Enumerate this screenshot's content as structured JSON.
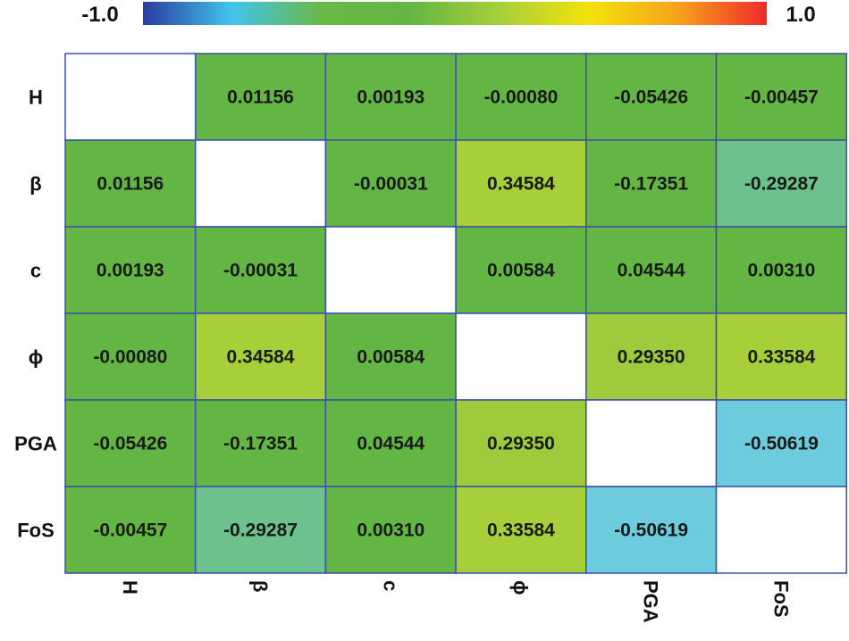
{
  "chart_data": {
    "type": "heatmap",
    "title": "",
    "colorbar": {
      "min_label": "-1.0",
      "max_label": "1.0",
      "range": [
        -1.0,
        1.0
      ],
      "colors": [
        "#2b3d9e",
        "#42c4ec",
        "#6ab845",
        "#64b644",
        "#a7cf3a",
        "#f4e20c",
        "#f7a21d",
        "#ee2b2b"
      ]
    },
    "row_labels": [
      "H",
      "β",
      "c",
      "ϕ",
      "PGA",
      "FoS"
    ],
    "col_labels": [
      "H",
      "β",
      "c",
      "ϕ",
      "PGA",
      "FoS"
    ],
    "values": [
      [
        null,
        0.01156,
        0.00193,
        -0.0008,
        -0.05426,
        -0.00457
      ],
      [
        0.01156,
        null,
        -0.00031,
        0.34584,
        -0.17351,
        -0.29287
      ],
      [
        0.00193,
        -0.00031,
        null,
        0.00584,
        0.04544,
        0.0031
      ],
      [
        -0.0008,
        0.34584,
        0.00584,
        null,
        0.2935,
        0.33584
      ],
      [
        -0.05426,
        -0.17351,
        0.04544,
        0.2935,
        null,
        -0.50619
      ],
      [
        -0.00457,
        -0.29287,
        0.0031,
        0.33584,
        -0.50619,
        null
      ]
    ],
    "value_labels": [
      [
        "",
        "0.01156",
        "0.00193",
        "-0.00080",
        "-0.05426",
        "-0.00457"
      ],
      [
        "0.01156",
        "",
        "-0.00031",
        "0.34584",
        "-0.17351",
        "-0.29287"
      ],
      [
        "0.00193",
        "-0.00031",
        "",
        "0.00584",
        "0.04544",
        "0.00310"
      ],
      [
        "-0.00080",
        "0.34584",
        "0.00584",
        "",
        "0.29350",
        "0.33584"
      ],
      [
        "-0.05426",
        "-0.17351",
        "0.04544",
        "0.29350",
        "",
        "-0.50619"
      ],
      [
        "-0.00457",
        "-0.29287",
        "0.00310",
        "0.33584",
        "-0.50619",
        ""
      ]
    ],
    "cell_colors": [
      [
        "#ffffff",
        "#64b644",
        "#64b644",
        "#64b644",
        "#64b644",
        "#64b644"
      ],
      [
        "#64b644",
        "#ffffff",
        "#64b644",
        "#a7cf3a",
        "#64b644",
        "#6cc18c"
      ],
      [
        "#64b644",
        "#64b644",
        "#ffffff",
        "#64b644",
        "#64b644",
        "#64b644"
      ],
      [
        "#64b644",
        "#a7cf3a",
        "#64b644",
        "#ffffff",
        "#9dcb3c",
        "#a7cf3a"
      ],
      [
        "#64b644",
        "#64b644",
        "#64b644",
        "#9dcb3c",
        "#ffffff",
        "#6ccbdd"
      ],
      [
        "#64b644",
        "#6cc18c",
        "#64b644",
        "#a7cf3a",
        "#6ccbdd",
        "#ffffff"
      ]
    ],
    "grid_color": "#3b4fa8",
    "diagonal": "blank",
    "legend": "top colorbar"
  }
}
